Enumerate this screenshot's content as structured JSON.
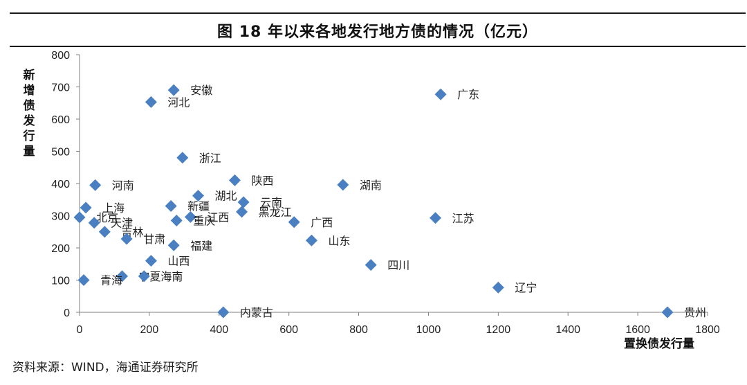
{
  "page": {
    "title": "图 18 年以来各地发行地方债的情况（亿元）",
    "source": "资料来源：WIND，海通证券研究所"
  },
  "chart_data": {
    "type": "scatter",
    "title": "图 18 年以来各地发行地方债的情况（亿元）",
    "xlabel": "置换债发行量",
    "ylabel": "新增债发行量",
    "xlim": [
      0,
      1800
    ],
    "ylim": [
      0,
      800
    ],
    "x_ticks": [
      0,
      200,
      400,
      600,
      800,
      1000,
      1200,
      1400,
      1600,
      1800
    ],
    "y_ticks": [
      0,
      100,
      200,
      300,
      400,
      500,
      600,
      700,
      800
    ],
    "marker_color": "#4a7fc1",
    "points": [
      {
        "label": "安徽",
        "x": 270,
        "y": 690
      },
      {
        "label": "河北",
        "x": 205,
        "y": 653
      },
      {
        "label": "广东",
        "x": 1035,
        "y": 677
      },
      {
        "label": "浙江",
        "x": 295,
        "y": 480
      },
      {
        "label": "河南",
        "x": 45,
        "y": 395
      },
      {
        "label": "陕西",
        "x": 445,
        "y": 410
      },
      {
        "label": "湖南",
        "x": 755,
        "y": 396
      },
      {
        "label": "湖北",
        "x": 340,
        "y": 362
      },
      {
        "label": "云南",
        "x": 470,
        "y": 342
      },
      {
        "label": "新疆",
        "x": 262,
        "y": 330
      },
      {
        "label": "上海",
        "x": 18,
        "y": 325
      },
      {
        "label": "黑龙江",
        "x": 465,
        "y": 312
      },
      {
        "label": "江西",
        "x": 318,
        "y": 296
      },
      {
        "label": "重庆",
        "x": 278,
        "y": 285
      },
      {
        "label": "北京",
        "x": 0,
        "y": 295
      },
      {
        "label": "天津",
        "x": 42,
        "y": 278
      },
      {
        "label": "吉林",
        "x": 72,
        "y": 250
      },
      {
        "label": "江苏",
        "x": 1020,
        "y": 293
      },
      {
        "label": "广西",
        "x": 615,
        "y": 280
      },
      {
        "label": "甘肃",
        "x": 135,
        "y": 228
      },
      {
        "label": "山东",
        "x": 665,
        "y": 223
      },
      {
        "label": "福建",
        "x": 270,
        "y": 208
      },
      {
        "label": "山西",
        "x": 205,
        "y": 160
      },
      {
        "label": "四川",
        "x": 835,
        "y": 147
      },
      {
        "label": "宁夏",
        "x": 122,
        "y": 112
      },
      {
        "label": "海南",
        "x": 185,
        "y": 112
      },
      {
        "label": "青海",
        "x": 12,
        "y": 100
      },
      {
        "label": "辽宁",
        "x": 1200,
        "y": 77
      },
      {
        "label": "内蒙古",
        "x": 412,
        "y": 0
      },
      {
        "label": "贵州",
        "x": 1685,
        "y": 0
      }
    ]
  }
}
